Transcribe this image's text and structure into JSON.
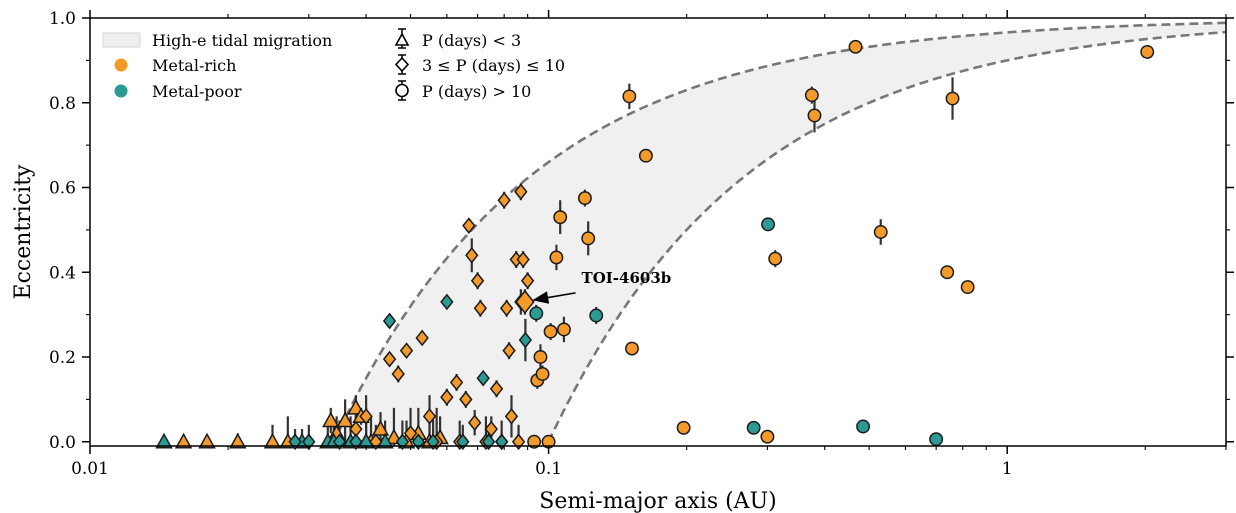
{
  "chart_data": {
    "type": "scatter",
    "title": "",
    "xlabel": "Semi-major axis (AU)",
    "ylabel": "Eccentricity",
    "xscale": "log",
    "xlim": [
      0.01,
      3.0
    ],
    "ylim": [
      -0.01,
      1.0
    ],
    "xticks": [
      {
        "value": 0.01,
        "label": "0.01"
      },
      {
        "value": 0.1,
        "label": "0.1"
      },
      {
        "value": 1,
        "label": "1"
      }
    ],
    "yticks": [
      {
        "value": 0.0,
        "label": "0.0"
      },
      {
        "value": 0.2,
        "label": "0.2"
      },
      {
        "value": 0.4,
        "label": "0.4"
      },
      {
        "value": 0.6,
        "label": "0.6"
      },
      {
        "value": 0.8,
        "label": "0.8"
      },
      {
        "value": 1.0,
        "label": "1.0"
      }
    ],
    "grid": false,
    "legend_position": "top-left",
    "colors": {
      "metal_rich": "#f39a2b",
      "metal_poor": "#2a9a93",
      "region_fill": "#f0f0f0",
      "boundary": "#777777",
      "errorbar": "#333333"
    },
    "legend": {
      "region": "High-e tidal migration",
      "metal_rich": "Metal-rich",
      "metal_poor": "Metal-poor",
      "short_period": "P (days) < 3",
      "mid_period": "3 ≤ P (days) ≤ 10",
      "long_period": "P (days) > 10"
    },
    "region_bounds": {
      "inner_periapse_au": 0.034,
      "outer_periapse_au": 0.1
    },
    "annotation": {
      "text": "TOI-4603b",
      "x": 0.0888,
      "y": 0.33
    },
    "series": [
      {
        "name": "Metal-rich",
        "period_class": "P (days) < 3",
        "color": "metal_rich",
        "marker": "triangle",
        "points": [
          [
            0.016,
            0.0,
            0.01
          ],
          [
            0.018,
            0.0,
            0.01
          ],
          [
            0.021,
            0.0,
            0.02
          ],
          [
            0.025,
            0.0,
            0.04
          ],
          [
            0.027,
            0.0,
            0.06
          ],
          [
            0.0335,
            0.05,
            0.03
          ],
          [
            0.0345,
            0.02,
            0.04
          ],
          [
            0.036,
            0.05,
            0.05
          ],
          [
            0.038,
            0.08,
            0.03
          ],
          [
            0.039,
            0.06,
            0.02
          ],
          [
            0.041,
            0.0,
            0.06
          ],
          [
            0.043,
            0.03,
            0.04
          ],
          [
            0.046,
            0.01,
            0.07
          ],
          [
            0.049,
            0.0,
            0.05
          ],
          [
            0.052,
            0.02,
            0.06
          ],
          [
            0.055,
            0.0,
            0.04
          ],
          [
            0.058,
            0.01,
            0.05
          ]
        ]
      },
      {
        "name": "Metal-poor",
        "period_class": "P (days) < 3",
        "color": "metal_poor",
        "marker": "triangle",
        "points": [
          [
            0.0145,
            0.0,
            0.01
          ],
          [
            0.029,
            0.0,
            0.03
          ],
          [
            0.033,
            0.0,
            0.04
          ],
          [
            0.034,
            0.0,
            0.05
          ],
          [
            0.037,
            0.0,
            0.06
          ],
          [
            0.04,
            0.0,
            0.08
          ],
          [
            0.044,
            0.0,
            0.05
          ]
        ]
      },
      {
        "name": "Metal-rich",
        "period_class": "3 ≤ P (days) ≤ 10",
        "color": "metal_rich",
        "marker": "diamond",
        "points": [
          [
            0.038,
            0.03,
            0.06
          ],
          [
            0.04,
            0.06,
            0.05
          ],
          [
            0.042,
            0.0,
            0.04
          ],
          [
            0.045,
            0.195,
            0.01
          ],
          [
            0.047,
            0.16,
            0.02
          ],
          [
            0.049,
            0.215,
            0.01
          ],
          [
            0.05,
            0.02,
            0.06
          ],
          [
            0.053,
            0.245,
            0.01
          ],
          [
            0.055,
            0.06,
            0.05
          ],
          [
            0.057,
            0.0,
            0.08
          ],
          [
            0.06,
            0.105,
            0.02
          ],
          [
            0.063,
            0.14,
            0.02
          ],
          [
            0.064,
            0.0,
            0.05
          ],
          [
            0.066,
            0.1,
            0.02
          ],
          [
            0.067,
            0.51,
            0.01
          ],
          [
            0.068,
            0.44,
            0.04
          ],
          [
            0.069,
            0.045,
            0.03
          ],
          [
            0.07,
            0.38,
            0.02
          ],
          [
            0.071,
            0.315,
            0.02
          ],
          [
            0.073,
            0.0,
            0.06
          ],
          [
            0.075,
            0.03,
            0.03
          ],
          [
            0.077,
            0.125,
            0.02
          ],
          [
            0.079,
            0.0,
            0.05
          ],
          [
            0.08,
            0.57,
            0.02
          ],
          [
            0.081,
            0.315,
            0.02
          ],
          [
            0.082,
            0.215,
            0.02
          ],
          [
            0.083,
            0.06,
            0.05
          ],
          [
            0.085,
            0.43,
            0.02
          ],
          [
            0.087,
            0.59,
            0.02
          ],
          [
            0.087,
            0.33,
            0.03
          ],
          [
            0.088,
            0.43,
            0.02
          ],
          [
            0.09,
            0.38,
            0.02
          ],
          [
            0.086,
            0.0,
            0.04
          ]
        ]
      },
      {
        "name": "Metal-poor",
        "period_class": "3 ≤ P (days) ≤ 10",
        "color": "metal_poor",
        "marker": "diamond",
        "points": [
          [
            0.028,
            0.0,
            0.03
          ],
          [
            0.03,
            0.0,
            0.04
          ],
          [
            0.035,
            0.0,
            0.05
          ],
          [
            0.038,
            0.0,
            0.06
          ],
          [
            0.045,
            0.285,
            0.01
          ],
          [
            0.048,
            0.0,
            0.05
          ],
          [
            0.052,
            0.0,
            0.04
          ],
          [
            0.056,
            0.0,
            0.06
          ],
          [
            0.06,
            0.33,
            0.01
          ],
          [
            0.065,
            0.0,
            0.04
          ],
          [
            0.072,
            0.15,
            0.01
          ],
          [
            0.074,
            0.0,
            0.03
          ],
          [
            0.079,
            0.0,
            0.02
          ],
          [
            0.089,
            0.24,
            0.05
          ]
        ]
      },
      {
        "name": "Metal-rich",
        "period_class": "P (days) > 10",
        "color": "metal_rich",
        "marker": "circle",
        "points": [
          [
            0.0945,
            0.145,
            0.02
          ],
          [
            0.096,
            0.2,
            0.03
          ],
          [
            0.097,
            0.16,
            0.02
          ],
          [
            0.1,
            0.0,
            0.01
          ],
          [
            0.101,
            0.26,
            0.02
          ],
          [
            0.104,
            0.435,
            0.03
          ],
          [
            0.106,
            0.53,
            0.04
          ],
          [
            0.108,
            0.265,
            0.03
          ],
          [
            0.12,
            0.575,
            0.02
          ],
          [
            0.122,
            0.48,
            0.04
          ],
          [
            0.15,
            0.815,
            0.03
          ],
          [
            0.152,
            0.22,
            0.01
          ],
          [
            0.163,
            0.675,
            0.01
          ],
          [
            0.197,
            0.033,
            0.01
          ],
          [
            0.3,
            0.012,
            0.01
          ],
          [
            0.312,
            0.432,
            0.02
          ],
          [
            0.375,
            0.818,
            0.02
          ],
          [
            0.38,
            0.77,
            0.04
          ],
          [
            0.467,
            0.932,
            0.01
          ],
          [
            0.53,
            0.495,
            0.03
          ],
          [
            0.74,
            0.4,
            0.01
          ],
          [
            0.76,
            0.81,
            0.05
          ],
          [
            0.82,
            0.365,
            0.01
          ],
          [
            2.02,
            0.92,
            0.01
          ],
          [
            0.093,
            0.0,
            0.01
          ]
        ]
      },
      {
        "name": "Metal-poor",
        "period_class": "P (days) > 10",
        "color": "metal_poor",
        "marker": "circle",
        "points": [
          [
            0.094,
            0.303,
            0.02
          ],
          [
            0.127,
            0.298,
            0.02
          ],
          [
            0.28,
            0.033,
            0.01
          ],
          [
            0.301,
            0.513,
            0.01
          ],
          [
            0.485,
            0.036,
            0.01
          ],
          [
            0.7,
            0.006,
            0.01
          ]
        ]
      }
    ],
    "highlight": {
      "name": "TOI-4603b",
      "x": 0.0888,
      "y": 0.33,
      "color": "metal_rich",
      "marker": "diamond",
      "err": 0.03
    }
  }
}
